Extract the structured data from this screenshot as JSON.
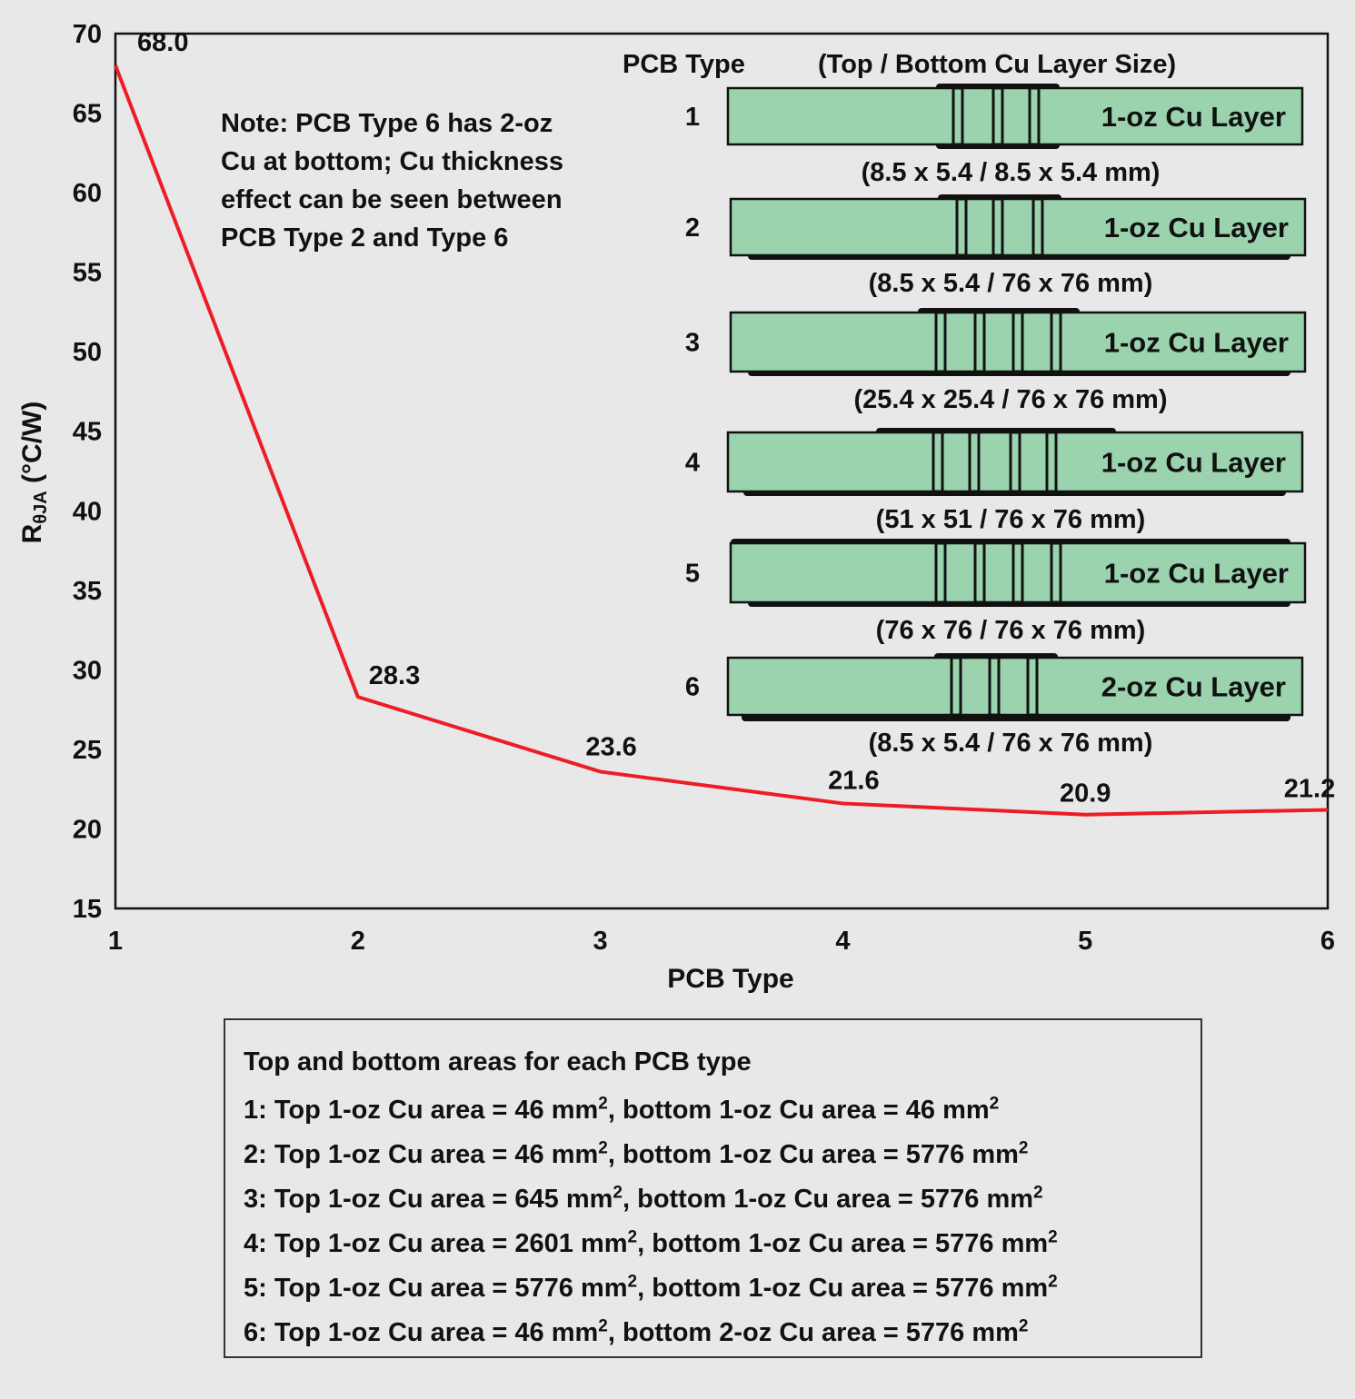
{
  "chart_data": {
    "type": "line",
    "xlabel": "PCB Type",
    "ylabel_main": "R",
    "ylabel_sub": "θJA",
    "ylabel_unit": " (°C/W)",
    "x": [
      1,
      2,
      3,
      4,
      5,
      6
    ],
    "values": [
      68.0,
      28.3,
      23.6,
      21.6,
      20.9,
      21.2
    ],
    "data_labels": [
      "68.0",
      "28.3",
      "23.6",
      "21.6",
      "20.9",
      "21.2"
    ],
    "xlim": [
      1,
      6
    ],
    "ylim": [
      15,
      70
    ],
    "yticks": [
      "15",
      "20",
      "25",
      "30",
      "35",
      "40",
      "45",
      "50",
      "55",
      "60",
      "65",
      "70"
    ],
    "xticks": [
      "1",
      "2",
      "3",
      "4",
      "5",
      "6"
    ],
    "grid": false,
    "line_color": "#ee1c25",
    "note_lines": [
      "Note: PCB Type 6 has 2-oz",
      "Cu at bottom; Cu thickness",
      "effect can be seen between",
      "PCB Type 2 and Type 6"
    ],
    "inset": {
      "header_type": "PCB Type",
      "header_size": "(Top / Bottom Cu Layer Size)",
      "board_color": "#9bd3ae",
      "boards": [
        {
          "type": "1",
          "layer": "1-oz Cu Layer",
          "size": "(8.5 x 5.4 / 8.5 x 5.4 mm)"
        },
        {
          "type": "2",
          "layer": "1-oz Cu Layer",
          "size": "(8.5 x 5.4 / 76 x 76 mm)"
        },
        {
          "type": "3",
          "layer": "1-oz Cu Layer",
          "size": "(25.4 x 25.4 / 76 x 76 mm)"
        },
        {
          "type": "4",
          "layer": "1-oz Cu Layer",
          "size": "(51 x 51 / 76 x 76 mm)"
        },
        {
          "type": "5",
          "layer": "1-oz Cu Layer",
          "size": "(76 x 76 / 76 x 76 mm)"
        },
        {
          "type": "6",
          "layer": "2-oz Cu Layer",
          "size": "(8.5 x 5.4 / 76 x 76 mm)"
        }
      ]
    }
  },
  "legend": {
    "title": "Top and bottom areas for each PCB type",
    "rows": [
      {
        "prefix": "1: Top 1-oz Cu area = 46 mm",
        "mid": ", bottom 1-oz Cu area = 46 mm"
      },
      {
        "prefix": "2: Top 1-oz Cu area = 46 mm",
        "mid": ", bottom 1-oz Cu area = 5776 mm"
      },
      {
        "prefix": "3: Top 1-oz Cu area = 645 mm",
        "mid": ", bottom 1-oz Cu area = 5776 mm"
      },
      {
        "prefix": "4: Top 1-oz Cu area = 2601 mm",
        "mid": ", bottom 1-oz Cu area = 5776 mm"
      },
      {
        "prefix": "5: Top 1-oz Cu area = 5776 mm",
        "mid": ", bottom 1-oz Cu area = 5776 mm"
      },
      {
        "prefix": "6: Top 1-oz Cu area = 46 mm",
        "mid": ", bottom 2-oz Cu area = 5776 mm"
      }
    ],
    "sup": "2"
  }
}
